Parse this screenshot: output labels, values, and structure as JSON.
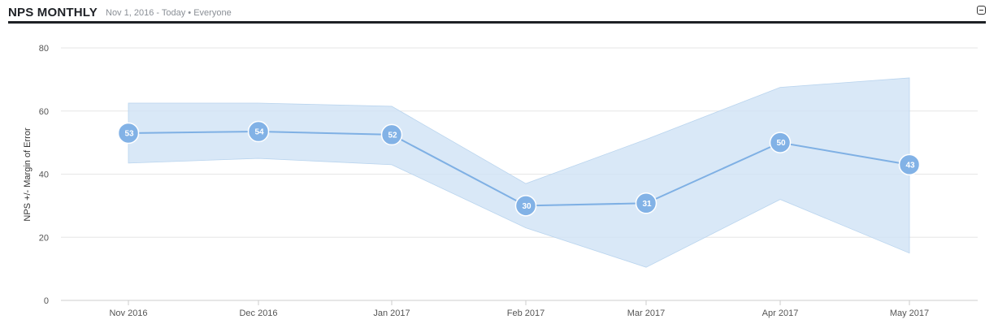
{
  "header": {
    "title": "NPS MONTHLY",
    "subtitle": "Nov 1, 2016 - Today • Everyone"
  },
  "colors": {
    "line": "#7fb0e4",
    "point": "#82b2e6",
    "band": "#cfe2f5",
    "grid": "#e6e6e6",
    "rule": "#1e2126"
  },
  "chart_data": {
    "type": "line",
    "title": "NPS MONTHLY",
    "ylabel": "NPS +/- Margin of Error",
    "xlabel": "",
    "categories": [
      "Nov 2016",
      "Dec 2016",
      "Jan 2017",
      "Feb 2017",
      "Mar 2017",
      "Apr 2017",
      "May 2017"
    ],
    "series": [
      {
        "values": [
          53,
          54,
          52,
          30,
          31,
          50,
          43
        ]
      }
    ],
    "plotted_values": [
      53,
      53.5,
      52.5,
      30,
      30.8,
      50,
      43
    ],
    "band_upper": [
      62.5,
      62.5,
      61.5,
      37,
      51,
      67.5,
      70.5
    ],
    "band_lower": [
      43.5,
      45,
      43,
      23,
      10.5,
      32,
      15
    ],
    "data_labels": [
      "53",
      "54",
      "52",
      "30",
      "31",
      "50",
      "43"
    ],
    "yticks": [
      "0",
      "20",
      "40",
      "60",
      "80"
    ],
    "ylim": [
      0,
      80
    ],
    "grid": true,
    "legend": "none"
  }
}
